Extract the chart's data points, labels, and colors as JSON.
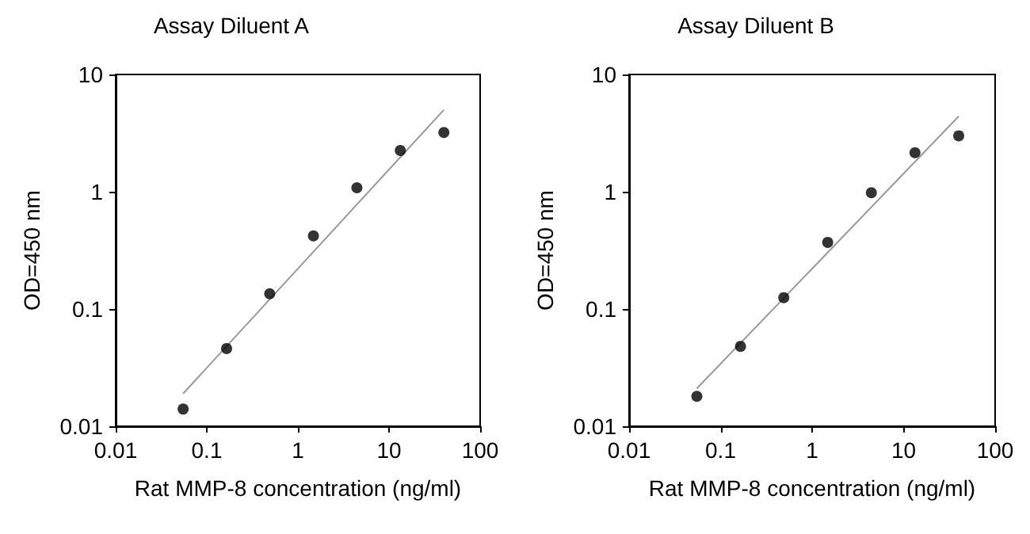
{
  "chart_data": [
    {
      "type": "scatter",
      "title": "Assay Diluent A",
      "xlabel": "Rat MMP-8 concentration (ng/ml)",
      "ylabel": "OD=450 nm",
      "log": "xy",
      "grid": false,
      "marker": "circle",
      "xlim": [
        0.01,
        100
      ],
      "xticks": [
        0.01,
        0.1,
        1,
        10,
        100
      ],
      "ylim": [
        0.01,
        10
      ],
      "yticks": [
        0.01,
        0.1,
        1,
        10
      ],
      "series": [
        {
          "color": "#000000",
          "x": [
            0.055,
            0.165,
            0.49,
            1.48,
            4.44,
            13.3,
            40
          ],
          "values": [
            0.014,
            0.046,
            0.135,
            0.42,
            1.08,
            2.25,
            3.2
          ]
        },
        {
          "type": "line",
          "color": "#999999",
          "marker": "none",
          "line_style": "solid",
          "x": [
            0.055,
            40
          ],
          "values": [
            0.019,
            5.0
          ]
        }
      ]
    },
    {
      "type": "scatter",
      "title": "Assay Diluent B",
      "xlabel": "Rat MMP-8 concentration (ng/ml)",
      "ylabel": "OD=450 nm",
      "log": "xy",
      "grid": false,
      "marker": "circle",
      "xlim": [
        0.01,
        100
      ],
      "xticks": [
        0.01,
        0.1,
        1,
        10,
        100
      ],
      "ylim": [
        0.01,
        10
      ],
      "yticks": [
        0.01,
        0.1,
        1,
        10
      ],
      "series": [
        {
          "color": "#000000",
          "x": [
            0.055,
            0.165,
            0.49,
            1.48,
            4.44,
            13.3,
            40
          ],
          "values": [
            0.018,
            0.048,
            0.125,
            0.37,
            0.98,
            2.15,
            3.0
          ]
        },
        {
          "type": "line",
          "color": "#999999",
          "marker": "none",
          "line_style": "solid",
          "x": [
            0.055,
            40
          ],
          "values": [
            0.021,
            4.4
          ]
        }
      ]
    }
  ]
}
